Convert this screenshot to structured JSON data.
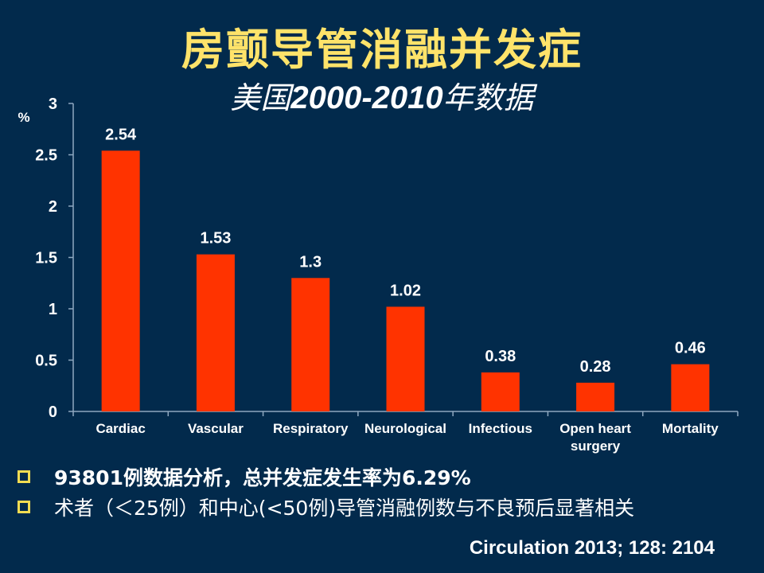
{
  "slide": {
    "title": "房颤导管消融并发症",
    "subtitle_prefix": "美国",
    "subtitle_years": "2000-2010",
    "subtitle_suffix": "年数据",
    "bullets": [
      "93801例数据分析，总并发症发生率为6.29%",
      "术者（＜25例）和中心(<50例)导管消融例数与不良预后显著相关"
    ],
    "citation": "Circulation 2013; 128: 2104",
    "colors": {
      "background": "#022A4C",
      "bar": "#FF3300",
      "title": "#FFE36A",
      "bullet_box": "#F2DC52",
      "text": "#FFFFFF"
    }
  },
  "chart_data": {
    "type": "bar",
    "title": "房颤导管消融并发症",
    "ylabel": "%",
    "xlabel": "",
    "categories": [
      "Cardiac",
      "Vascular",
      "Respiratory",
      "Neurological",
      "Infectious",
      "Open heart surgery",
      "Mortality"
    ],
    "category_lines": [
      [
        "Cardiac"
      ],
      [
        "Vascular"
      ],
      [
        "Respiratory"
      ],
      [
        "Neurological"
      ],
      [
        "Infectious"
      ],
      [
        "Open heart",
        "surgery"
      ],
      [
        "Mortality"
      ]
    ],
    "values": [
      2.54,
      1.53,
      1.3,
      1.02,
      0.38,
      0.28,
      0.46
    ],
    "data_labels": [
      "2.54",
      "1.53",
      "1.3",
      "1.02",
      "0.38",
      "0.28",
      "0.46"
    ],
    "ylim": [
      0,
      3
    ],
    "yticks": [
      0,
      0.5,
      1,
      1.5,
      2,
      2.5,
      3
    ],
    "ytick_labels": [
      "0",
      "0.5",
      "1",
      "1.5",
      "2",
      "2.5",
      "3"
    ],
    "grid": false,
    "legend": "none"
  }
}
